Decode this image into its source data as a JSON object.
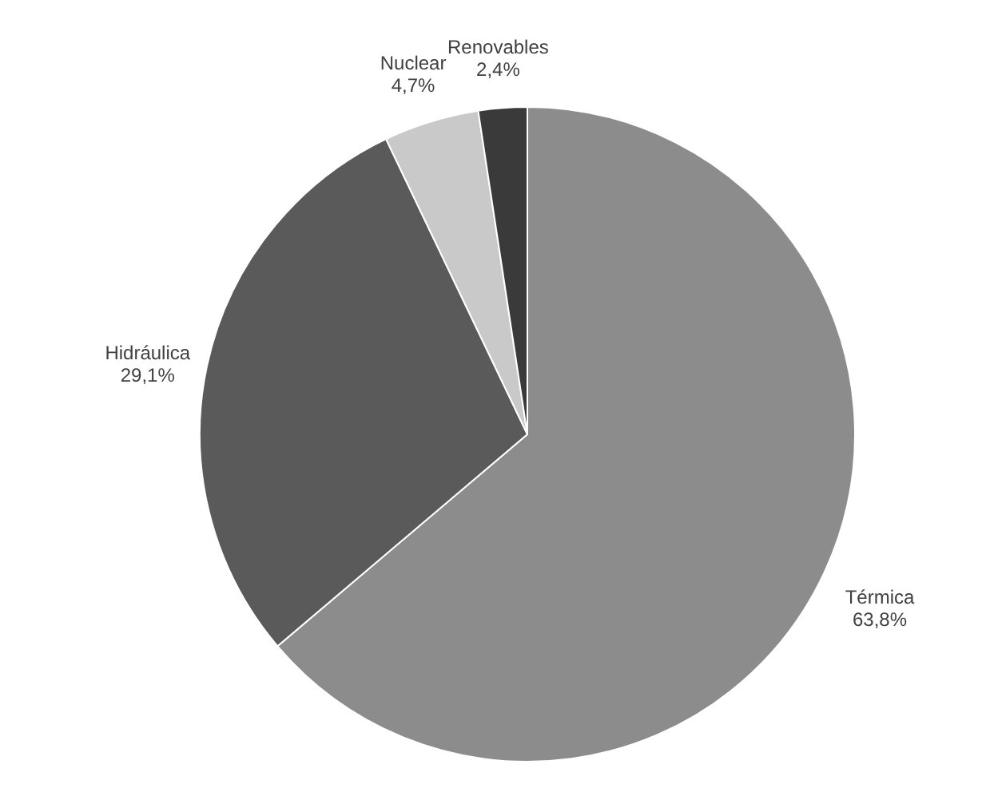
{
  "chart_data": {
    "type": "pie",
    "categories": [
      "Térmica",
      "Hidráulica",
      "Nuclear",
      "Renovables"
    ],
    "values": [
      63.8,
      29.1,
      4.7,
      2.4
    ],
    "colors": [
      "#8c8c8c",
      "#5a5a5a",
      "#c9c9c9",
      "#3a3a3a"
    ],
    "value_labels": [
      "63,8%",
      "29,1%",
      "4,7%",
      "2,4%"
    ]
  }
}
